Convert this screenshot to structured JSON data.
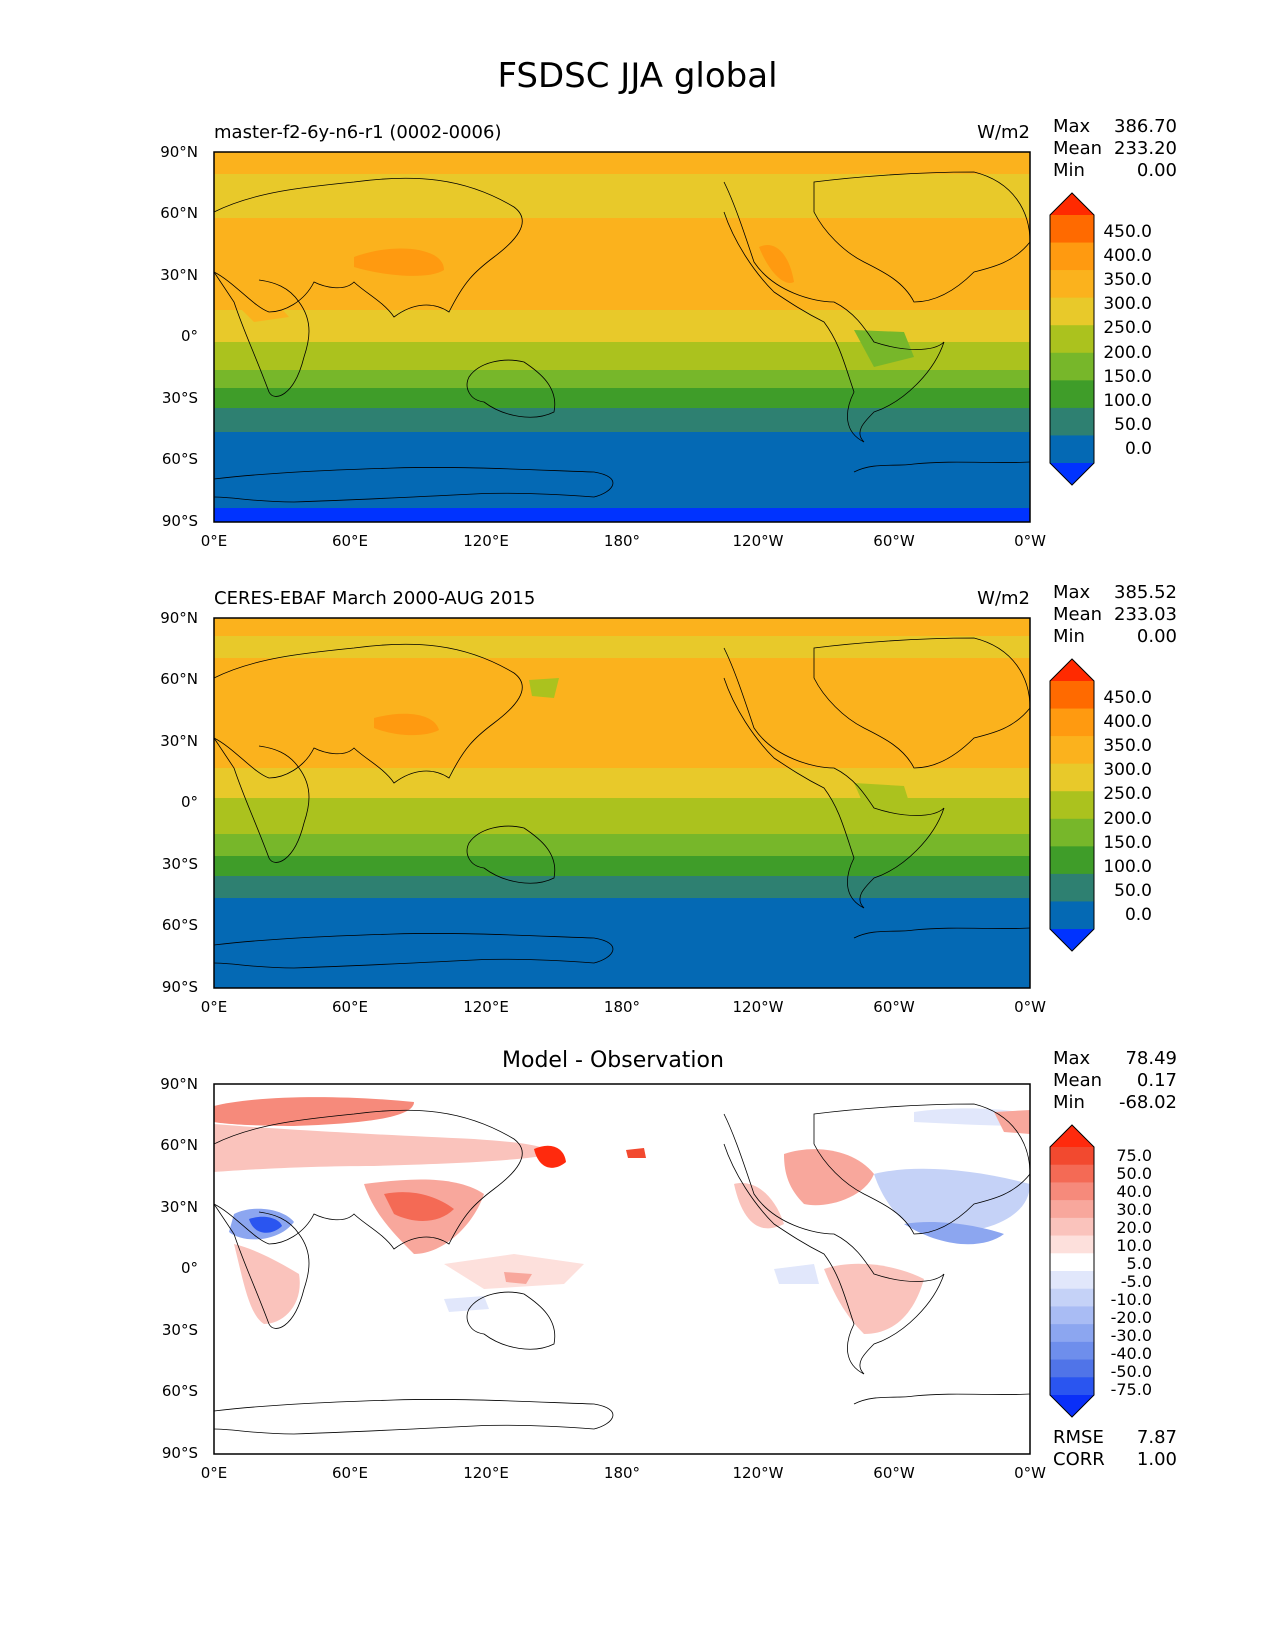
{
  "figure": {
    "title": "FSDSC JJA global"
  },
  "panels": [
    {
      "id": "model",
      "title": "master-f2-6y-n6-r1 (0002-0006)",
      "units": "W/m2",
      "stats": [
        {
          "label": "Max",
          "value": "386.70"
        },
        {
          "label": "Mean",
          "value": "233.20"
        },
        {
          "label": "Min",
          "value": "0.00"
        }
      ]
    },
    {
      "id": "obs",
      "title": "CERES-EBAF March 2000-AUG 2015",
      "units": "W/m2",
      "stats": [
        {
          "label": "Max",
          "value": "385.52"
        },
        {
          "label": "Mean",
          "value": "233.03"
        },
        {
          "label": "Min",
          "value": "0.00"
        }
      ]
    },
    {
      "id": "diff",
      "title": "Model - Observation",
      "units": "",
      "stats": [
        {
          "label": "Max",
          "value": "78.49"
        },
        {
          "label": "Mean",
          "value": "0.17"
        },
        {
          "label": "Min",
          "value": "-68.02"
        }
      ],
      "extra_stats": [
        {
          "label": "RMSE",
          "value": "7.87"
        },
        {
          "label": "CORR",
          "value": "1.00"
        }
      ]
    }
  ],
  "axes": {
    "lat_ticks": [
      "90°N",
      "60°N",
      "30°N",
      "0°",
      "30°S",
      "60°S",
      "90°S"
    ],
    "lon_ticks": [
      "0°E",
      "60°E",
      "120°E",
      "180°",
      "120°W",
      "60°W",
      "0°W"
    ]
  },
  "colorbars": {
    "absolute": {
      "labels": [
        "450.0",
        "400.0",
        "350.0",
        "300.0",
        "250.0",
        "200.0",
        "150.0",
        "100.0",
        "50.0",
        "0.0"
      ],
      "colors": [
        "#ff2a00",
        "#ff6a00",
        "#ff9a10",
        "#fbb21d",
        "#e8c92a",
        "#abc21e",
        "#77b72a",
        "#3f9d29",
        "#2e8071",
        "#0469b4",
        "#0033ff"
      ]
    },
    "difference": {
      "labels": [
        "75.0",
        "50.0",
        "40.0",
        "30.0",
        "20.0",
        "10.0",
        "5.0",
        "-5.0",
        "-10.0",
        "-20.0",
        "-30.0",
        "-40.0",
        "-50.0",
        "-75.0"
      ],
      "colors": [
        "#ff2a0d",
        "#f2492f",
        "#f46a55",
        "#f68a7b",
        "#f8a79c",
        "#fac3bc",
        "#fde0dc",
        "#ffffff",
        "#e1e7fb",
        "#c5d2f7",
        "#a9bcf4",
        "#8ca6f0",
        "#6e8eec",
        "#5074e8",
        "#2a55f0",
        "#0a2ff8"
      ]
    }
  },
  "chart_data": [
    {
      "type": "heatmap",
      "title": "master-f2-6y-n6-r1 (0002-0006)",
      "units": "W/m2",
      "colorbar_levels": [
        0,
        50,
        100,
        150,
        200,
        250,
        300,
        350,
        400,
        450
      ],
      "zonal_band_values_north_to_south": [
        {
          "lat": "90°N-75°N",
          "value": 325
        },
        {
          "lat": "75°N-55°N",
          "value": 275
        },
        {
          "lat": "55°N-20°N",
          "value": 325
        },
        {
          "lat": "20°N-5°S",
          "value": 275
        },
        {
          "lat": "5°S-15°S",
          "value": 225
        },
        {
          "lat": "15°S-25°S",
          "value": 175
        },
        {
          "lat": "25°S-35°S",
          "value": 125
        },
        {
          "lat": "35°S-45°S",
          "value": 75
        },
        {
          "lat": "45°S-80°S",
          "value": 25
        },
        {
          "lat": "80°S-90°S",
          "value": 0
        }
      ]
    },
    {
      "type": "heatmap",
      "title": "CERES-EBAF March 2000-AUG 2015",
      "units": "W/m2",
      "colorbar_levels": [
        0,
        50,
        100,
        150,
        200,
        250,
        300,
        350,
        400,
        450
      ],
      "zonal_band_values_north_to_south": [
        {
          "lat": "90°N-70°N",
          "value": 325
        },
        {
          "lat": "70°N-60°N",
          "value": 275
        },
        {
          "lat": "60°N-15°N",
          "value": 325
        },
        {
          "lat": "15°N-5°S",
          "value": 275
        },
        {
          "lat": "5°S-15°S",
          "value": 225
        },
        {
          "lat": "15°S-25°S",
          "value": 175
        },
        {
          "lat": "25°S-35°S",
          "value": 125
        },
        {
          "lat": "35°S-45°S",
          "value": 75
        },
        {
          "lat": "45°S-90°S",
          "value": 25
        }
      ]
    },
    {
      "type": "heatmap",
      "title": "Model - Observation",
      "colorbar_levels": [
        -75,
        -50,
        -40,
        -30,
        -20,
        -10,
        -5,
        5,
        10,
        20,
        30,
        40,
        50,
        75
      ],
      "features": [
        {
          "region": "Arctic Eurasia",
          "value": 30
        },
        {
          "region": "Sea of Okhotsk",
          "value": 60
        },
        {
          "region": "Arabian Peninsula / NE Africa",
          "value": -40
        },
        {
          "region": "East Asia",
          "value": 25
        },
        {
          "region": "North Atlantic",
          "value": -15
        },
        {
          "region": "Eastern North America",
          "value": 20
        },
        {
          "region": "Southern Africa",
          "value": 15
        },
        {
          "region": "South America",
          "value": 10
        }
      ]
    }
  ]
}
